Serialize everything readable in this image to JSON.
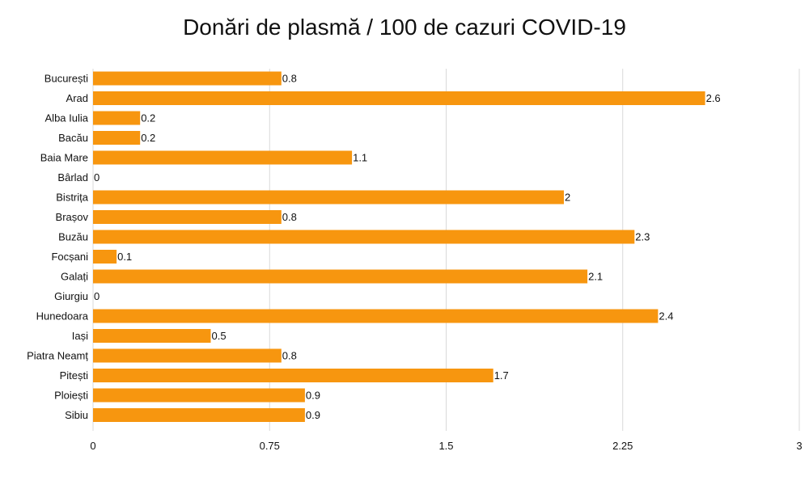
{
  "colors": {
    "bar": "#f7960f",
    "grid": "#d9d9d9",
    "text": "#111111"
  },
  "chart_data": {
    "type": "bar",
    "orientation": "horizontal",
    "title": "Donări de plasmă / 100 de cazuri COVID-19",
    "xlabel": "",
    "ylabel": "",
    "categories": [
      "București",
      "Arad",
      "Alba Iulia",
      "Bacău",
      "Baia Mare",
      "Bârlad",
      "Bistrița",
      "Brașov",
      "Buzău",
      "Focșani",
      "Galați",
      "Giurgiu",
      "Hunedoara",
      "Iași",
      "Piatra Neamț",
      "Pitești",
      "Ploiești",
      "Sibiu"
    ],
    "values": [
      0.8,
      2.6,
      0.2,
      0.2,
      1.1,
      0,
      2,
      0.8,
      2.3,
      0.1,
      2.1,
      0,
      2.4,
      0.5,
      0.8,
      1.7,
      0.9,
      0.9
    ],
    "value_labels": [
      "0.8",
      "2.6",
      "0.2",
      "0.2",
      "1.1",
      "0",
      "2",
      "0.8",
      "2.3",
      "0.1",
      "2.1",
      "0",
      "2.4",
      "0.5",
      "0.8",
      "1.7",
      "0.9",
      "0.9"
    ],
    "xlim": [
      0,
      3
    ],
    "xticks": [
      0,
      0.75,
      1.5,
      2.25,
      3
    ],
    "xtick_labels": [
      "0",
      "0.75",
      "1.5",
      "2.25",
      "3"
    ],
    "grid": true,
    "legend": "none"
  }
}
